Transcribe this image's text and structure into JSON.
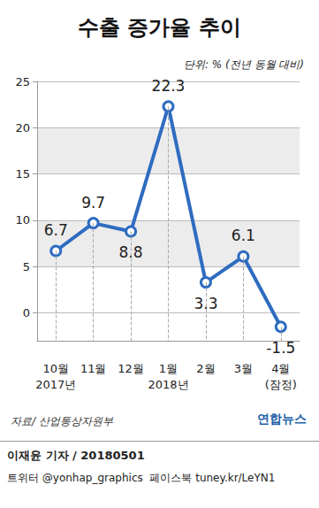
{
  "chart_data": {
    "type": "line",
    "title": "수출 증가율 추이",
    "subtitle": "단위: % (전년 동월 대비)",
    "categories": [
      "10월\n2017년",
      "11월",
      "12월",
      "1월\n2018년",
      "2월",
      "3월",
      "4월\n(잠정)"
    ],
    "values": [
      6.7,
      9.7,
      8.8,
      22.3,
      3.3,
      6.1,
      -1.5
    ],
    "color": "#2e6cc0",
    "marker": "circle",
    "ylim": [
      -3,
      25
    ],
    "yticks": [
      0,
      5,
      10,
      15,
      20,
      25
    ],
    "grid": true,
    "data_labels": true,
    "annotations": [
      "자료/ 산업통상자원부",
      "연합뉴스",
      "이재윤 기자 / 20180501",
      "트위터 @yonhap_graphics  페이스북 tuney.kr/LeYN1"
    ]
  }
}
